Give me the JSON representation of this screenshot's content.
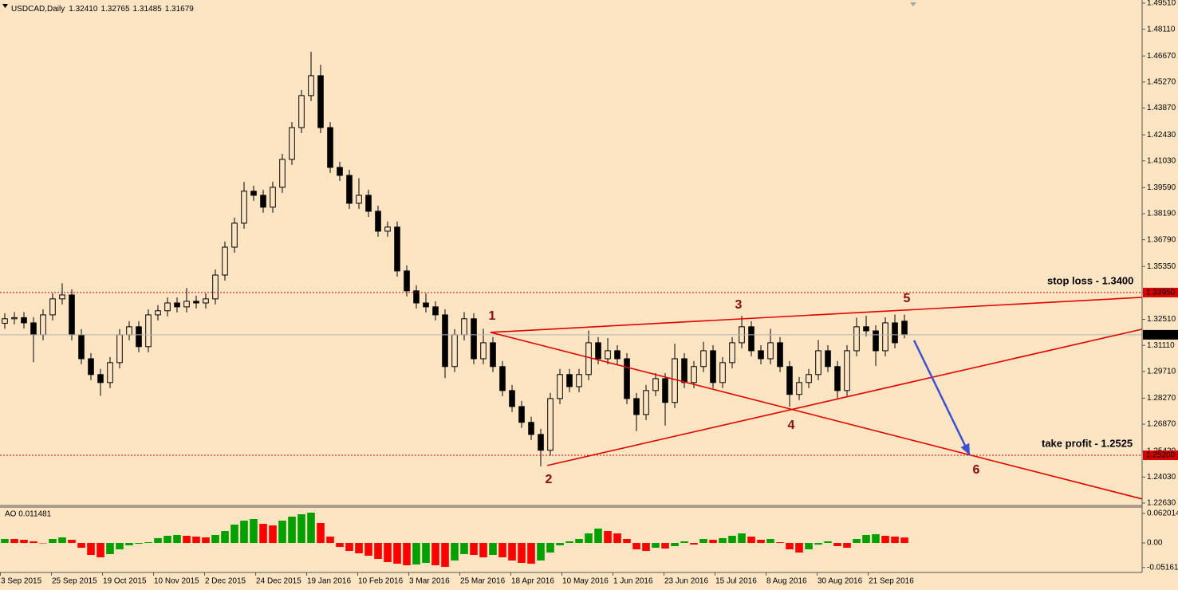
{
  "header": {
    "symbol": "USDCAD,Daily",
    "quote": [
      "1.32410",
      "1.32765",
      "1.31485",
      "1.31679"
    ]
  },
  "chart_data": [
    {
      "type": "candlestick",
      "xlim": [
        -0.5,
        118.83
      ],
      "xticks": [
        {
          "value": -0.5,
          "label": "3 Sep 2015"
        },
        {
          "value": 4.83,
          "label": "25 Sep 2015"
        },
        {
          "value": 10.17,
          "label": "19 Oct 2015"
        },
        {
          "value": 15.5,
          "label": "10 Nov 2015"
        },
        {
          "value": 20.83,
          "label": "2 Dec 2015"
        },
        {
          "value": 26.17,
          "label": "24 Dec 2015"
        },
        {
          "value": 31.5,
          "label": "19 Jan 2016"
        },
        {
          "value": 36.83,
          "label": "10 Feb 2016"
        },
        {
          "value": 42.17,
          "label": "3 Mar 2016"
        },
        {
          "value": 47.5,
          "label": "25 Mar 2016"
        },
        {
          "value": 52.83,
          "label": "18 Apr 2016"
        },
        {
          "value": 58.17,
          "label": "10 May 2016"
        },
        {
          "value": 63.5,
          "label": "1 Jun 2016"
        },
        {
          "value": 68.83,
          "label": "23 Jun 2016"
        },
        {
          "value": 74.17,
          "label": "15 Jul 2016"
        },
        {
          "value": 79.5,
          "label": "8 Aug 2016"
        },
        {
          "value": 84.83,
          "label": "30 Aug 2016"
        },
        {
          "value": 90.17,
          "label": "21 Sep 2016"
        }
      ],
      "ylim": [
        1.225,
        1.4968
      ],
      "yticks": [
        {
          "value": 1.4951,
          "label": "1.49510"
        },
        {
          "value": 1.4811,
          "label": "1.48110"
        },
        {
          "value": 1.4667,
          "label": "1.46670"
        },
        {
          "value": 1.4527,
          "label": "1.45270"
        },
        {
          "value": 1.4387,
          "label": "1.43870"
        },
        {
          "value": 1.4243,
          "label": "1.42430"
        },
        {
          "value": 1.4103,
          "label": "1.41030"
        },
        {
          "value": 1.3959,
          "label": "1.39590"
        },
        {
          "value": 1.3819,
          "label": "1.38190"
        },
        {
          "value": 1.3679,
          "label": "1.36790"
        },
        {
          "value": 1.3535,
          "label": "1.35350"
        },
        {
          "value": 1.3395,
          "label": "1.33950"
        },
        {
          "value": 1.3251,
          "label": "1.32510"
        },
        {
          "value": 1.3111,
          "label": "1.31110"
        },
        {
          "value": 1.2971,
          "label": "1.29710"
        },
        {
          "value": 1.2827,
          "label": "1.28270"
        },
        {
          "value": 1.2687,
          "label": "1.26870"
        },
        {
          "value": 1.2542,
          "label": "1.25420"
        },
        {
          "value": 1.2403,
          "label": "1.24030"
        },
        {
          "value": 1.2263,
          "label": "1.22630"
        }
      ],
      "open": [
        1.323,
        1.3254,
        1.326,
        1.3232,
        1.3168,
        1.3275,
        1.3361,
        1.3382,
        1.3168,
        1.3039,
        1.2954,
        1.2911,
        1.3018,
        1.3168,
        1.3211,
        1.3104,
        1.3275,
        1.3297,
        1.3339,
        1.3318,
        1.3348,
        1.3339,
        1.3361,
        1.3489,
        1.3639,
        1.3768,
        1.394,
        1.3918,
        1.3854,
        1.3961,
        1.4111,
        1.4282,
        1.4454,
        1.4561,
        1.4282,
        1.4068,
        1.4025,
        1.3875,
        1.3918,
        1.3832,
        1.3725,
        1.3747,
        1.3511,
        1.3404,
        1.3339,
        1.3318,
        1.3275,
        1.2997,
        1.3168,
        1.3254,
        1.3039,
        1.3125,
        1.2997,
        1.2868,
        1.2782,
        1.2697,
        1.2632,
        1.2547,
        1.2825,
        1.2954,
        1.2889,
        1.2954,
        1.3125,
        1.3039,
        1.3082,
        1.3039,
        1.2825,
        1.2739,
        1.2868,
        1.2932,
        1.2804,
        1.3039,
        1.2911,
        1.2997,
        1.3082,
        1.2911,
        1.3018,
        1.3125,
        1.3211,
        1.3082,
        1.3039,
        1.3125,
        1.2997,
        1.2847,
        1.2911,
        1.2954,
        1.3082,
        1.2997,
        1.2868,
        1.3082,
        1.3211,
        1.3189,
        1.3082,
        1.3232,
        1.3241
      ],
      "high": [
        1.3284,
        1.329,
        1.329,
        1.3262,
        1.3305,
        1.3391,
        1.3445,
        1.3412,
        1.3198,
        1.3069,
        1.2984,
        1.3048,
        1.3198,
        1.3241,
        1.3241,
        1.3305,
        1.3327,
        1.3369,
        1.3369,
        1.342,
        1.3378,
        1.3391,
        1.3519,
        1.3669,
        1.3798,
        1.399,
        1.397,
        1.3948,
        1.3991,
        1.4141,
        1.4312,
        1.4484,
        1.469,
        1.462,
        1.4312,
        1.4098,
        1.4055,
        1.401,
        1.3948,
        1.3862,
        1.3777,
        1.3777,
        1.3541,
        1.3434,
        1.339,
        1.3348,
        1.3305,
        1.3198,
        1.329,
        1.3284,
        1.32,
        1.3155,
        1.3027,
        1.2898,
        1.2812,
        1.2727,
        1.2662,
        1.2855,
        1.2984,
        1.2984,
        1.2984,
        1.319,
        1.3155,
        1.315,
        1.3112,
        1.3069,
        1.2855,
        1.2898,
        1.2962,
        1.2962,
        1.312,
        1.3069,
        1.3027,
        1.313,
        1.3112,
        1.3048,
        1.3155,
        1.327,
        1.3241,
        1.3112,
        1.32,
        1.3155,
        1.3027,
        1.2941,
        1.2984,
        1.314,
        1.3112,
        1.3027,
        1.3112,
        1.326,
        1.327,
        1.3219,
        1.3262,
        1.3277,
        1.32765
      ],
      "low": [
        1.32,
        1.3224,
        1.3202,
        1.302,
        1.3138,
        1.3245,
        1.3331,
        1.3138,
        1.3009,
        1.2924,
        1.284,
        1.2881,
        1.2988,
        1.3138,
        1.3074,
        1.3074,
        1.3245,
        1.3267,
        1.3288,
        1.3288,
        1.3309,
        1.3309,
        1.3331,
        1.3459,
        1.3609,
        1.3738,
        1.3888,
        1.3824,
        1.3824,
        1.3931,
        1.4081,
        1.4252,
        1.4424,
        1.4252,
        1.4038,
        1.3995,
        1.3845,
        1.3845,
        1.3802,
        1.3695,
        1.3695,
        1.3481,
        1.3374,
        1.3309,
        1.3288,
        1.3245,
        1.2935,
        1.2967,
        1.3138,
        1.3009,
        1.3009,
        1.2967,
        1.2838,
        1.2752,
        1.2667,
        1.2602,
        1.2461,
        1.2517,
        1.2795,
        1.2859,
        1.2859,
        1.2924,
        1.3009,
        1.3009,
        1.3009,
        1.2795,
        1.265,
        1.2709,
        1.2838,
        1.268,
        1.2774,
        1.2881,
        1.2881,
        1.2967,
        1.2881,
        1.2881,
        1.2988,
        1.3095,
        1.3052,
        1.3009,
        1.3009,
        1.2967,
        1.278,
        1.2817,
        1.2881,
        1.2924,
        1.2967,
        1.282,
        1.2838,
        1.3052,
        1.3159,
        1.3,
        1.3052,
        1.3095,
        1.31485
      ],
      "close": [
        1.3254,
        1.326,
        1.3232,
        1.3168,
        1.3275,
        1.3361,
        1.3382,
        1.3168,
        1.3039,
        1.2954,
        1.2911,
        1.3018,
        1.3168,
        1.3211,
        1.3104,
        1.3275,
        1.3297,
        1.3339,
        1.3318,
        1.3348,
        1.3339,
        1.3361,
        1.3489,
        1.3639,
        1.3768,
        1.394,
        1.3918,
        1.3854,
        1.3961,
        1.4111,
        1.4282,
        1.4454,
        1.4561,
        1.4282,
        1.4068,
        1.4025,
        1.3875,
        1.3918,
        1.3832,
        1.3725,
        1.3747,
        1.3511,
        1.3404,
        1.3339,
        1.3318,
        1.3275,
        1.2997,
        1.3168,
        1.3254,
        1.3039,
        1.3125,
        1.2997,
        1.2868,
        1.2782,
        1.2697,
        1.2632,
        1.2547,
        1.2825,
        1.2954,
        1.2889,
        1.2954,
        1.3125,
        1.3039,
        1.3082,
        1.3039,
        1.2825,
        1.2739,
        1.2868,
        1.2932,
        1.2804,
        1.3039,
        1.2911,
        1.2997,
        1.3082,
        1.2911,
        1.3018,
        1.3125,
        1.3211,
        1.3082,
        1.3039,
        1.3125,
        1.2997,
        1.2847,
        1.2911,
        1.2954,
        1.3082,
        1.2997,
        1.2868,
        1.3082,
        1.3211,
        1.3189,
        1.3082,
        1.3232,
        1.3125,
        1.31679
      ],
      "up_color": "#fde5c3",
      "down_color": "#000000",
      "outline_color": "#000000",
      "hlines": [
        {
          "value": 1.3395,
          "label": "1.33950",
          "color": "#d40000",
          "style": "dashed"
        },
        {
          "value": 1.252,
          "label": "1.25200",
          "color": "#d40000",
          "style": "dashed"
        },
        {
          "value": 1.31679,
          "label": "1.31679",
          "color": "#000000",
          "style": "solid"
        }
      ],
      "annotations": [
        "stop loss - 1.3400",
        "take profit - 1.2525"
      ],
      "trend_lines": [
        {
          "color": "#e00000",
          "points": [
            [
              50.75,
              1.3181
            ],
            [
              118.83,
              1.3369
            ]
          ]
        },
        {
          "color": "#e00000",
          "points": [
            [
              50.75,
              1.3181
            ],
            [
              118.83,
              1.2285
            ]
          ]
        },
        {
          "color": "#e00000",
          "points": [
            [
              56.67,
              1.2465
            ],
            [
              118.83,
              1.3198
            ]
          ]
        }
      ],
      "arrow": {
        "color": "#3c50d0",
        "points": [
          [
            95,
            1.3138
          ],
          [
            100.83,
            1.252
          ]
        ]
      },
      "wave_labels": [
        "1",
        "2",
        "3",
        "4",
        "5",
        "6"
      ]
    },
    {
      "type": "bar",
      "title": "AO 0.011481",
      "xlim": [
        -0.5,
        118.83
      ],
      "ylim": [
        -0.062,
        0.0754
      ],
      "yticks": [
        0.062014,
        {
          "value": 0,
          "label": "0.00"
        },
        -0.051614
      ],
      "up_color": "#00a000",
      "down_color": "#ff0000",
      "values": [
        0.0084,
        0.0084,
        0.0067,
        0.0034,
        0,
        0.0084,
        0.0117,
        0.0067,
        -0.0101,
        -0.0251,
        -0.0302,
        -0.0235,
        -0.0134,
        -0.005,
        -0.0017,
        0.0017,
        0.0101,
        0.0151,
        0.0168,
        0.0151,
        0.0134,
        0.0117,
        0.0168,
        0.0251,
        0.0385,
        0.0469,
        0.0503,
        0.0402,
        0.0369,
        0.0469,
        0.0553,
        0.0603,
        0.0637,
        0.0419,
        0.0134,
        -0.0084,
        -0.0168,
        -0.0218,
        -0.0268,
        -0.0335,
        -0.0402,
        -0.0436,
        -0.0469,
        -0.0452,
        -0.0419,
        -0.0469,
        -0.0503,
        -0.0369,
        -0.0235,
        -0.0251,
        -0.0302,
        -0.0251,
        -0.0302,
        -0.0369,
        -0.0419,
        -0.0436,
        -0.0369,
        -0.0201,
        -0.005,
        0.0034,
        0.0084,
        0.0201,
        0.0302,
        0.0251,
        0.0201,
        0.0084,
        -0.0134,
        -0.0168,
        -0.0101,
        -0.0117,
        -0.0067,
        0.0034,
        -0.0034,
        0.0084,
        0.0067,
        0.0101,
        0.0151,
        0.0201,
        0.0134,
        0.0067,
        0.0084,
        0.0017,
        -0.0134,
        -0.0201,
        -0.0134,
        -0.0034,
        0.0034,
        -0.0067,
        -0.0101,
        0.0084,
        0.0168,
        0.0184,
        0.0151,
        0.0134,
        0.011481
      ]
    }
  ]
}
